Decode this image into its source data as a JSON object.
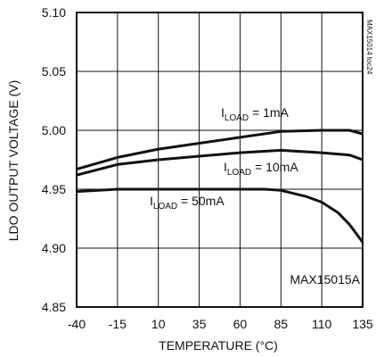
{
  "chart_data": {
    "type": "line",
    "title": "",
    "xlabel": "TEMPERATURE (°C)",
    "ylabel": "LDO OUTPUT VOLTAGE (V)",
    "xlim": [
      -40,
      135
    ],
    "ylim": [
      4.85,
      5.1
    ],
    "xticks": [
      -40,
      -15,
      10,
      35,
      60,
      85,
      110,
      135
    ],
    "xtick_labels": [
      "-40",
      "-15",
      "10",
      "35",
      "60",
      "85",
      "110",
      "135"
    ],
    "yticks": [
      4.85,
      4.9,
      4.95,
      5.0,
      5.05,
      5.1
    ],
    "ytick_labels": [
      "4.85",
      "4.90",
      "4.95",
      "5.00",
      "5.05",
      "5.10"
    ],
    "grid": true,
    "side_label": "MAX15014 toc24",
    "corner_label": "MAX15015A",
    "series": [
      {
        "label_main": "I",
        "label_sub": "LOAD",
        "label_rest": " = 1mA",
        "points": [
          [
            -40,
            4.967
          ],
          [
            -15,
            4.977
          ],
          [
            10,
            4.984
          ],
          [
            35,
            4.989
          ],
          [
            60,
            4.994
          ],
          [
            85,
            4.999
          ],
          [
            110,
            5.0
          ],
          [
            127,
            5.0
          ],
          [
            135,
            4.997
          ]
        ]
      },
      {
        "label_main": "I",
        "label_sub": "LOAD",
        "label_rest": " = 10mA",
        "points": [
          [
            -40,
            4.962
          ],
          [
            -15,
            4.971
          ],
          [
            10,
            4.975
          ],
          [
            35,
            4.978
          ],
          [
            60,
            4.981
          ],
          [
            85,
            4.983
          ],
          [
            110,
            4.981
          ],
          [
            127,
            4.979
          ],
          [
            135,
            4.975
          ]
        ]
      },
      {
        "label_main": "I",
        "label_sub": "LOAD",
        "label_rest": " = 50mA",
        "points": [
          [
            -40,
            4.948
          ],
          [
            -15,
            4.95
          ],
          [
            10,
            4.95
          ],
          [
            35,
            4.95
          ],
          [
            60,
            4.95
          ],
          [
            75,
            4.95
          ],
          [
            85,
            4.949
          ],
          [
            100,
            4.944
          ],
          [
            110,
            4.939
          ],
          [
            120,
            4.93
          ],
          [
            127,
            4.92
          ],
          [
            135,
            4.905
          ]
        ]
      }
    ]
  }
}
